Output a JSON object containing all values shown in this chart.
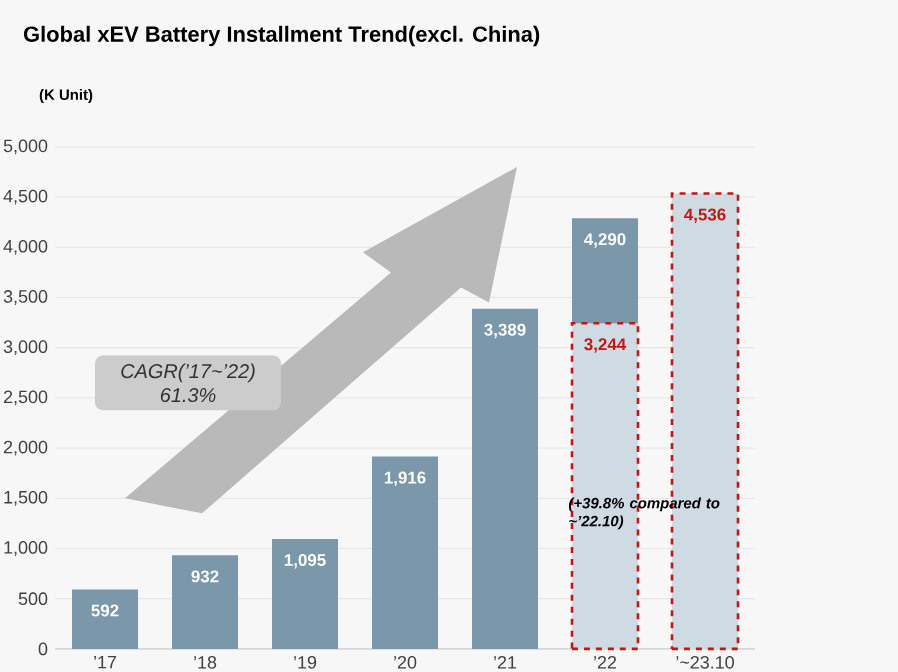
{
  "chart_data": {
    "type": "bar",
    "title": "Global xEV Battery Installment Trend(excl. China)",
    "ylabel": "(K Unit)",
    "categories": [
      "’17",
      "’18",
      "’19",
      "’20",
      "’21",
      "’22",
      "’~23.10"
    ],
    "series": [
      {
        "colors": [
          "#7b98ab",
          "#7b98ab",
          "#7b98ab",
          "#7b98ab",
          "#7b98ab",
          "#7b98ab",
          "#cfdbe3"
        ],
        "values": [
          592,
          932,
          1095,
          1916,
          3389,
          4290,
          4536
        ],
        "value_labels": [
          "592",
          "932",
          "1,095",
          "1,916",
          "3,389",
          "4,290",
          "4,536"
        ]
      },
      {
        "color": "#cfdbe3",
        "values": [
          null,
          null,
          null,
          null,
          null,
          3244,
          null
        ],
        "value_labels": [
          null,
          null,
          null,
          null,
          null,
          "3,244",
          null
        ]
      }
    ],
    "ylim": [
      0,
      5000
    ],
    "yticks": [
      0,
      500,
      {
        "value": 1000,
        "label": "1,000"
      },
      {
        "value": 1500,
        "label": "1,500"
      },
      {
        "value": 2000,
        "label": "2,000"
      },
      {
        "value": 2500,
        "label": "2,500"
      },
      {
        "value": 3000,
        "label": "3,000"
      },
      {
        "value": 3500,
        "label": "3,500"
      },
      {
        "value": 4000,
        "label": "4,000"
      },
      {
        "value": 4500,
        "label": "4,500"
      },
      {
        "value": 5000,
        "label": "5,000"
      }
    ],
    "grid": "y",
    "annotations": [
      "CAGR(’17~’22) 61.3%",
      "(+39.8% compared to ~’22.10)"
    ]
  }
}
